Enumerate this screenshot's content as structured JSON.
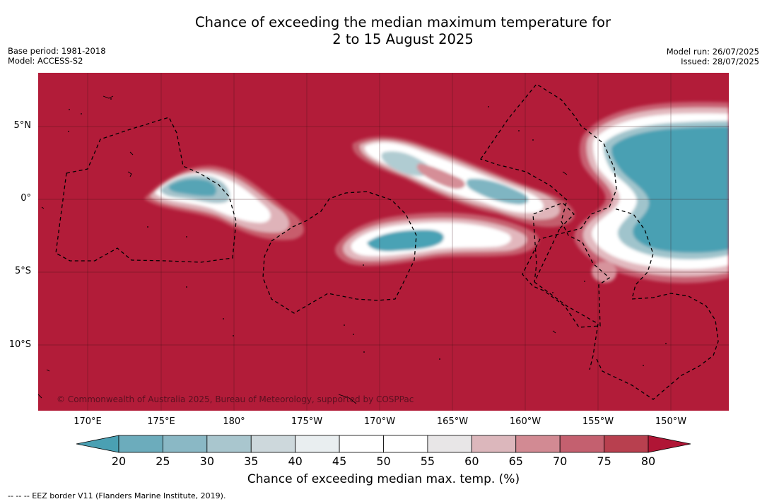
{
  "title": {
    "line1": "Chance of exceeding the median maximum temperature for",
    "line2": "2 to 15 August 2025"
  },
  "meta": {
    "base_period": "Base period: 1981-2018",
    "model": "Model: ACCESS-S2",
    "model_run": "Model run: 26/07/2025",
    "issued": "Issued: 28/07/2025"
  },
  "map": {
    "background_color": "#b21c39",
    "lat_labels": [
      "5°N",
      "0°",
      "5°S",
      "10°S"
    ],
    "lon_labels": [
      "170°E",
      "175°E",
      "180°",
      "175°W",
      "170°W",
      "165°W",
      "160°W",
      "155°W",
      "150°W"
    ],
    "copyright": "© Commonwealth of Australia 2025, Bureau of Meteorology, supported by COSPPac"
  },
  "colorbar": {
    "title": "Chance of exceeding median max. temp. (%)",
    "ticks": [
      "20",
      "25",
      "30",
      "35",
      "40",
      "45",
      "50",
      "55",
      "60",
      "65",
      "70",
      "75",
      "80"
    ],
    "colors": [
      "#4aa0b3",
      "#6cacbc",
      "#8ab8c5",
      "#a9c6ce",
      "#cdd8dc",
      "#e9eef0",
      "#ffffff",
      "#ffffff",
      "#e8e6e7",
      "#dcb7bc",
      "#d28a93",
      "#c4606f",
      "#b8404f",
      "#b01535"
    ]
  },
  "footer": {
    "eez": "--  --  -- EEZ border V11 (Flanders Marine Institute, 2019)."
  }
}
